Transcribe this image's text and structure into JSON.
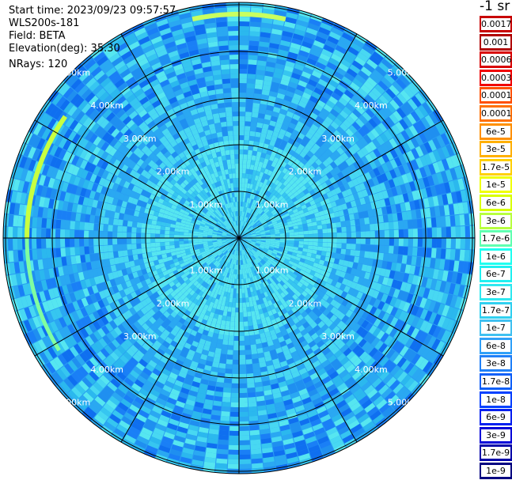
{
  "info": {
    "start_time": "Start time: 2023/09/23 09:57:57",
    "instrument": "WLS200s-181",
    "field": "Field: BETA",
    "elevation": "Elevation(deg): 35.30",
    "nrays": "NRays: 120"
  },
  "ppi": {
    "ring_labels": [
      "1.00km",
      "2.00km",
      "3.00km",
      "4.00km",
      "5.00km"
    ],
    "ray_count": 120
  },
  "colorbar": {
    "unit_fragment": "-1 sr",
    "ticks": [
      "0.0017",
      "0.001",
      "0.0006",
      "0.0003",
      "0.00017",
      "0.0001",
      "6e-5",
      "3e-5",
      "1.7e-5",
      "1e-5",
      "6e-6",
      "3e-6",
      "1.7e-6",
      "1e-6",
      "6e-7",
      "3e-7",
      "1.7e-7",
      "1e-7",
      "6e-8",
      "3e-8",
      "1.7e-8",
      "1e-8",
      "6e-9",
      "3e-9",
      "1.7e-9",
      "1e-9"
    ],
    "colors": [
      "#c80000",
      "#b00000",
      "#d80000",
      "#f00000",
      "#ff5000",
      "#ff7000",
      "#ff9000",
      "#ffb000",
      "#ffd000",
      "#f0ff00",
      "#d8ff00",
      "#b8ff40",
      "#60ffb0",
      "#20fff0",
      "#20f0f0",
      "#30e8f0",
      "#30d0f0",
      "#40c0f0",
      "#30a0f8",
      "#2080f8",
      "#1060f8",
      "#0040ff",
      "#0020f0",
      "#0000d8",
      "#0000a8",
      "#000080"
    ]
  }
}
